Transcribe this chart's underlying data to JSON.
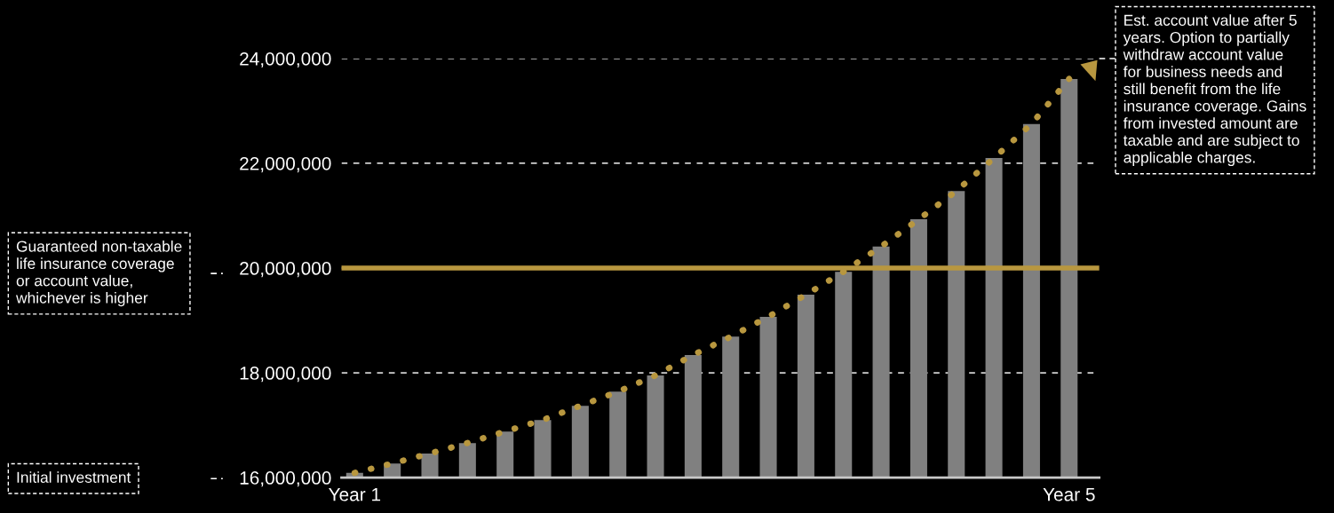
{
  "chart_data": {
    "type": "bar",
    "categories": [
      "Year 1",
      null,
      null,
      null,
      null,
      null,
      null,
      null,
      null,
      null,
      null,
      null,
      null,
      null,
      null,
      null,
      null,
      null,
      null,
      "Year 5"
    ],
    "series": [
      {
        "color": "#808080",
        "values": [
          16090000,
          16270000,
          16460000,
          16660000,
          16880000,
          17100000,
          17370000,
          17640000,
          17950000,
          18340000,
          18690000,
          19070000,
          19490000,
          19930000,
          20410000,
          20930000,
          21470000,
          22100000,
          22750000,
          23610000
        ]
      },
      {
        "type": "line",
        "color": "#b8973f",
        "line_style": "dotted",
        "values": [
          16090000,
          16270000,
          16460000,
          16660000,
          16880000,
          17100000,
          17370000,
          17640000,
          17950000,
          18340000,
          18690000,
          19070000,
          19490000,
          19930000,
          20410000,
          20930000,
          21470000,
          22100000,
          22750000,
          23610000
        ]
      }
    ],
    "ylim": [
      16000000,
      24000000
    ],
    "yticks": [
      {
        "value": 16000000,
        "label": "16,000,000"
      },
      {
        "value": 18000000,
        "label": "18,000,000"
      },
      {
        "value": 20000000,
        "label": "20,000,000"
      },
      {
        "value": 22000000,
        "label": "22,000,000"
      },
      {
        "value": 24000000,
        "label": "24,000,000"
      }
    ],
    "grid": "y",
    "ref_lines": [
      {
        "axis": "y",
        "value": 20000000,
        "color": "#b8973f",
        "line_style": "solid"
      }
    ],
    "annotations": [
      "Guaranteed non-taxable\nlife insurance coverage\nor account value,\nwhichever is higher",
      "Initial investment",
      "Est. account value after 5\nyears. Option to partially\nwithdraw account value\nfor business needs and\nstill benefit from the life\ninsurance coverage. Gains\nfrom invested amount are\ntaxable and are subject to\napplicable charges."
    ]
  }
}
